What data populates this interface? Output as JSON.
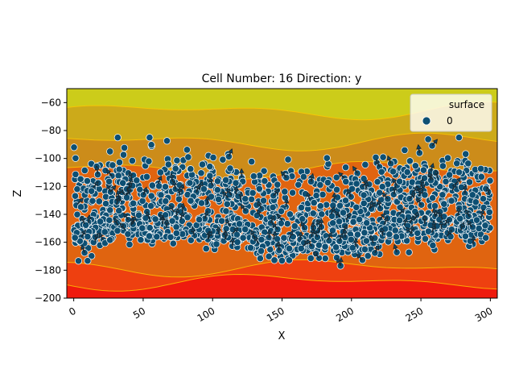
{
  "chart_data": {
    "type": "scatter",
    "title": "Cell Number: 16 Direction: y",
    "xlabel": "X",
    "ylabel": "Z",
    "xlim": [
      -5,
      305
    ],
    "ylim": [
      -200,
      -50
    ],
    "x_ticks": [
      0,
      50,
      100,
      150,
      200,
      250,
      300
    ],
    "y_ticks": [
      -60,
      -80,
      -100,
      -120,
      -140,
      -160,
      -180,
      -200
    ],
    "x_tick_labels": [
      "0",
      "50",
      "100",
      "150",
      "200",
      "250",
      "300"
    ],
    "y_tick_labels": [
      "−60",
      "−80",
      "−100",
      "−120",
      "−140",
      "−160",
      "−180",
      "−200"
    ],
    "tick_label_rotation_x": 30,
    "grid": false,
    "legend": {
      "title": "surface",
      "placement": "top-right",
      "entries": [
        {
          "label": "0",
          "color": "#0d4f73"
        }
      ]
    },
    "background": {
      "type": "contourf",
      "levels_top_to_bottom": [
        "#cccc1a",
        "#ccaa1a",
        "#cc8c1a",
        "#e06410",
        "#ee4010",
        "#ef1a0e"
      ],
      "contour_line_color": "#ffc800"
    },
    "series": [
      {
        "marker_color": "#0d4f73",
        "marker_edge": "#ffffff",
        "layers": [
          {
            "x_range": [
              0,
              300
            ],
            "z_center": -128,
            "z_spread": 22,
            "count": 900
          },
          {
            "x_range": [
              0,
              300
            ],
            "z_center": -155,
            "z_spread": 10,
            "count": 700
          }
        ]
      }
    ],
    "orientation_arrows": {
      "color": "#1a2a33",
      "count": 160,
      "length": 10
    }
  }
}
